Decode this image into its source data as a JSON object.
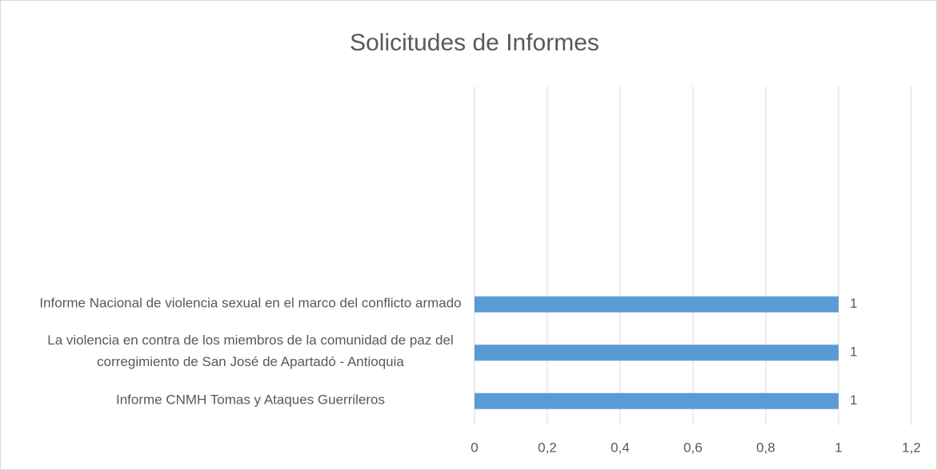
{
  "chart_data": {
    "type": "bar",
    "orientation": "horizontal",
    "title": "Solicitudes de Informes",
    "categories": [
      "Informe Nacional de violencia sexual en el marco del conflicto armado",
      "La violencia en contra de los miembros de la comunidad de paz del corregimiento de San José de Apartadó - Antioquia",
      "Informe CNMH Tomas y Ataques Guerrileros"
    ],
    "values": [
      1,
      1,
      1
    ],
    "color": "#5b9bd5",
    "xlim": [
      0,
      1.2
    ],
    "xticks": [
      0,
      {
        "value": 0.2,
        "label": "0,2"
      },
      {
        "value": 0.4,
        "label": "0,4"
      },
      {
        "value": 0.6,
        "label": "0,6"
      },
      {
        "value": 0.8,
        "label": "0,8"
      },
      1,
      {
        "value": 1.2,
        "label": "1,2"
      }
    ],
    "grid": true
  }
}
